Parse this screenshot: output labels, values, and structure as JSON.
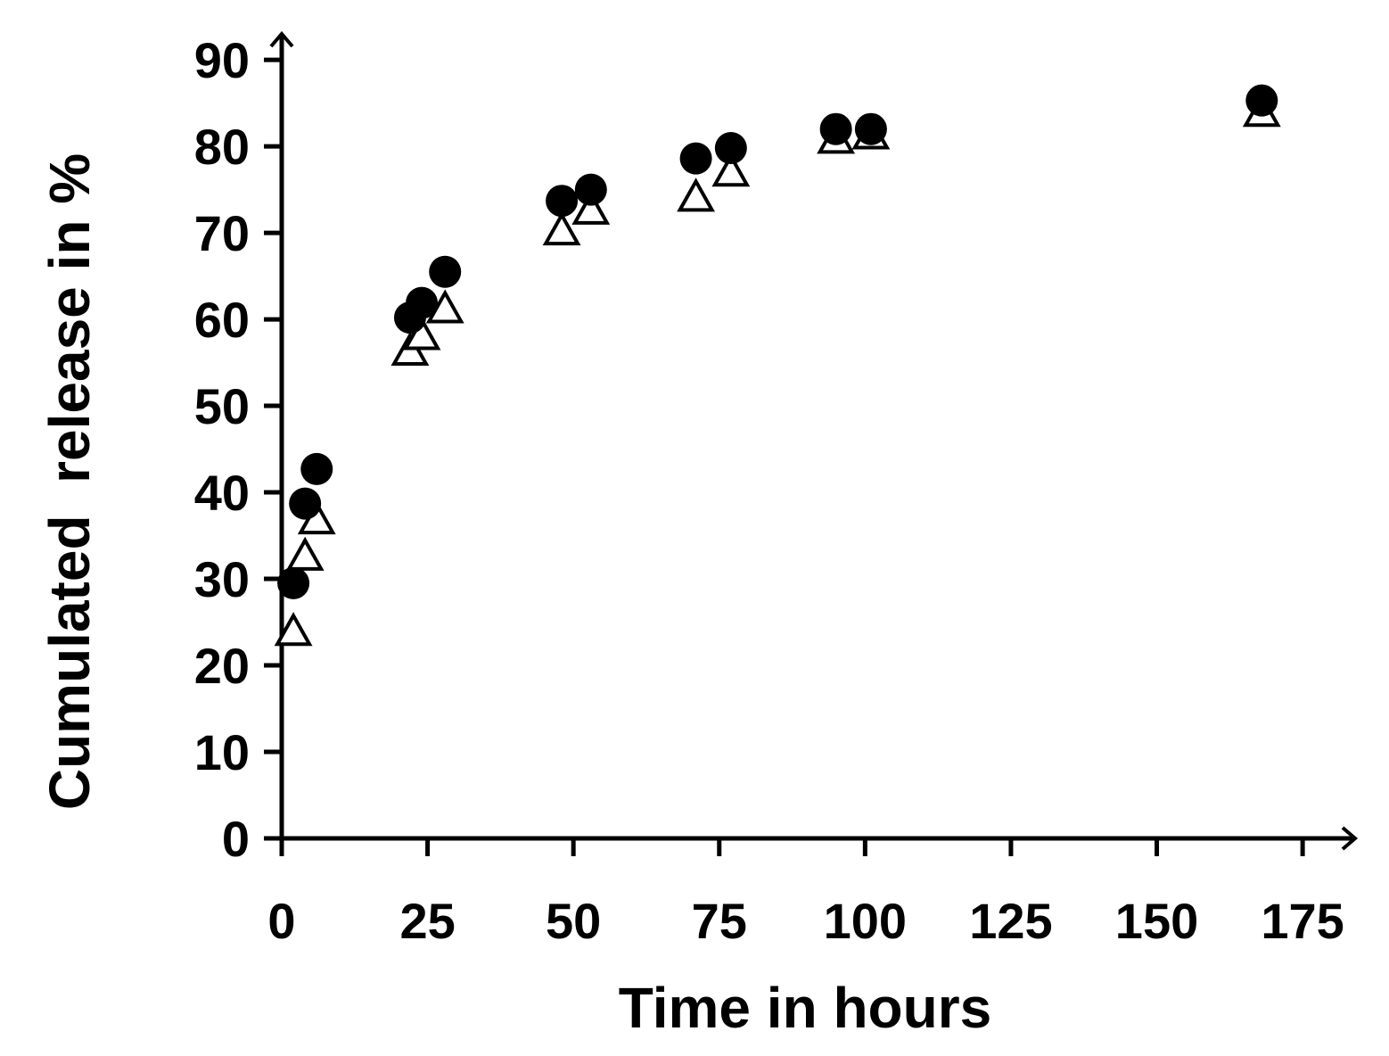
{
  "chart_data": {
    "type": "scatter",
    "x_label": "Time in hours",
    "y_label": "Cumulated  release in %",
    "x": [
      2,
      4,
      6,
      22,
      24,
      28,
      48,
      53,
      71,
      77,
      95,
      101,
      168
    ],
    "series": [
      {
        "marker": "circle",
        "color": "#000000",
        "values": [
          29.5,
          38.7,
          42.7,
          60.2,
          61.9,
          65.5,
          73.7,
          75,
          78.6,
          79.8,
          82,
          82,
          85.3
        ]
      },
      {
        "marker": "triangle",
        "color": "#000000",
        "values": [
          24,
          32.7,
          36.9,
          56.4,
          58.2,
          61.3,
          70.3,
          72.7,
          74.2,
          77.1,
          80.9,
          81.4,
          84
        ]
      }
    ],
    "xlim": [
      0,
      184
    ],
    "ylim": [
      0,
      93
    ],
    "xticks": [
      0,
      25,
      50,
      75,
      100,
      125,
      150,
      175
    ],
    "yticks": [
      0,
      10,
      20,
      30,
      40,
      50,
      60,
      70,
      80,
      90
    ],
    "grid": false
  }
}
